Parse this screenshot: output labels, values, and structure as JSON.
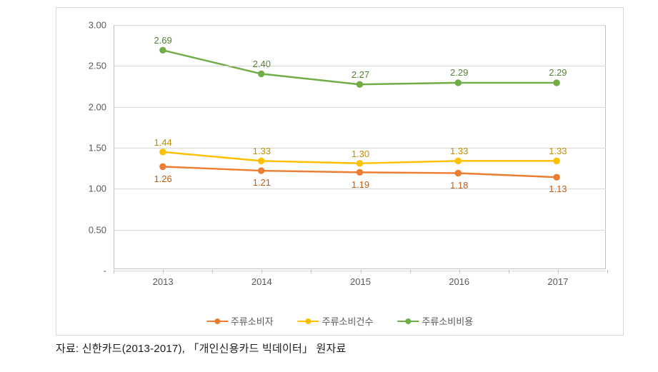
{
  "chart": {
    "type": "line",
    "categories": [
      "2013",
      "2014",
      "2015",
      "2016",
      "2017"
    ],
    "ylim": [
      0,
      3.0
    ],
    "ytick_step": 0.5,
    "yticks": [
      "-",
      "0.50",
      "1.00",
      "1.50",
      "2.00",
      "2.50",
      "3.00"
    ],
    "grid_color": "#d9d9d9",
    "border_color": "#bfbfbf",
    "background_color": "#ffffff",
    "label_fontsize": 13,
    "series": [
      {
        "name": "주류소비자",
        "color": "#ed7d31",
        "marker_fill": "#ed7d31",
        "marker": "circle",
        "marker_size": 6,
        "line_width": 2.5,
        "values": [
          1.26,
          1.21,
          1.19,
          1.18,
          1.13
        ],
        "labels": [
          "1.26",
          "1.21",
          "1.19",
          "1.18",
          "1.13"
        ],
        "label_offset": "below",
        "label_color": "#c55a11"
      },
      {
        "name": "주류소비건수",
        "color": "#ffc000",
        "marker_fill": "#ffc000",
        "marker": "circle",
        "marker_size": 6,
        "line_width": 2.5,
        "values": [
          1.44,
          1.33,
          1.3,
          1.33,
          1.33
        ],
        "labels": [
          "1.44",
          "1.33",
          "1.30",
          "1.33",
          "1.33"
        ],
        "label_offset": "above",
        "label_color": "#bf8f00"
      },
      {
        "name": "주류소비비용",
        "color": "#70ad47",
        "marker_fill": "#70ad47",
        "marker": "circle",
        "marker_size": 6,
        "line_width": 2.5,
        "values": [
          2.69,
          2.4,
          2.27,
          2.29,
          2.29
        ],
        "labels": [
          "2.69",
          "2.40",
          "2.27",
          "2.29",
          "2.29"
        ],
        "label_offset": "above",
        "label_color": "#548235"
      }
    ]
  },
  "source": "자료: 신한카드(2013-2017), 「개인신용카드 빅데이터」 원자료"
}
